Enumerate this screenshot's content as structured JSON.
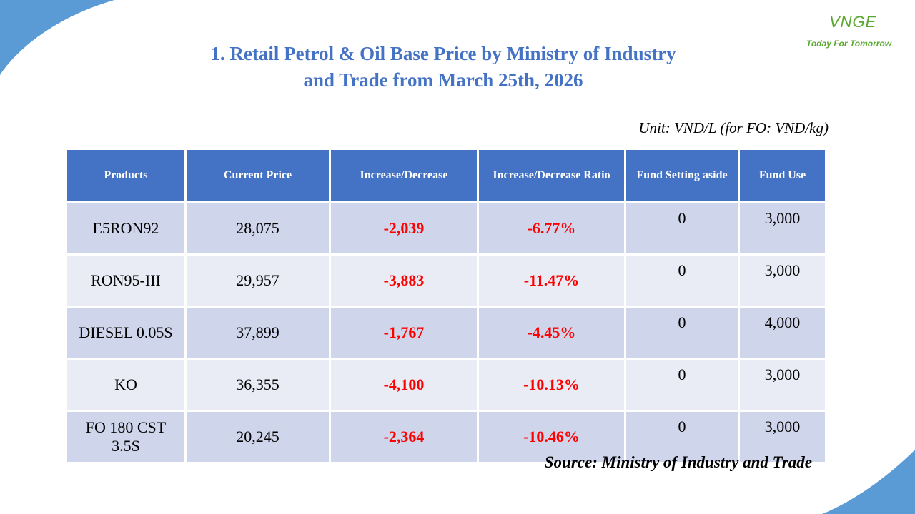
{
  "logo": {
    "name": "VNGE",
    "slogan": "Today For Tomorrow"
  },
  "header": {
    "title_lines": [
      "1. Retail Petrol & Oil Base Price by Ministry of Industry",
      "and Trade from March 25th, 2026"
    ]
  },
  "unit_note": "Unit: VND/L (for FO: VND/kg)",
  "table": {
    "columns": [
      "Products",
      "Current Price",
      "Increase/Decrease",
      "Increase/Decrease Ratio",
      "Fund Setting aside",
      "Fund Use"
    ],
    "rows": [
      [
        "E5RON92",
        "28,075",
        "-2,039",
        "-6.77%",
        "0",
        "3,000"
      ],
      [
        "RON95-III",
        "29,957",
        "-3,883",
        "-11.47%",
        "0",
        "3,000"
      ],
      [
        "DIESEL 0.05S",
        "37,899",
        "-1,767",
        "-4.45%",
        "0",
        "4,000"
      ],
      [
        "KO",
        "36,355",
        "-4,100",
        "-10.13%",
        "0",
        "3,000"
      ],
      [
        "FO 180 CST 3.5S",
        "20,245",
        "-2,364",
        "-10.46%",
        "0",
        "3,000"
      ]
    ]
  },
  "source": "Source: Ministry of Industry and Trade"
}
